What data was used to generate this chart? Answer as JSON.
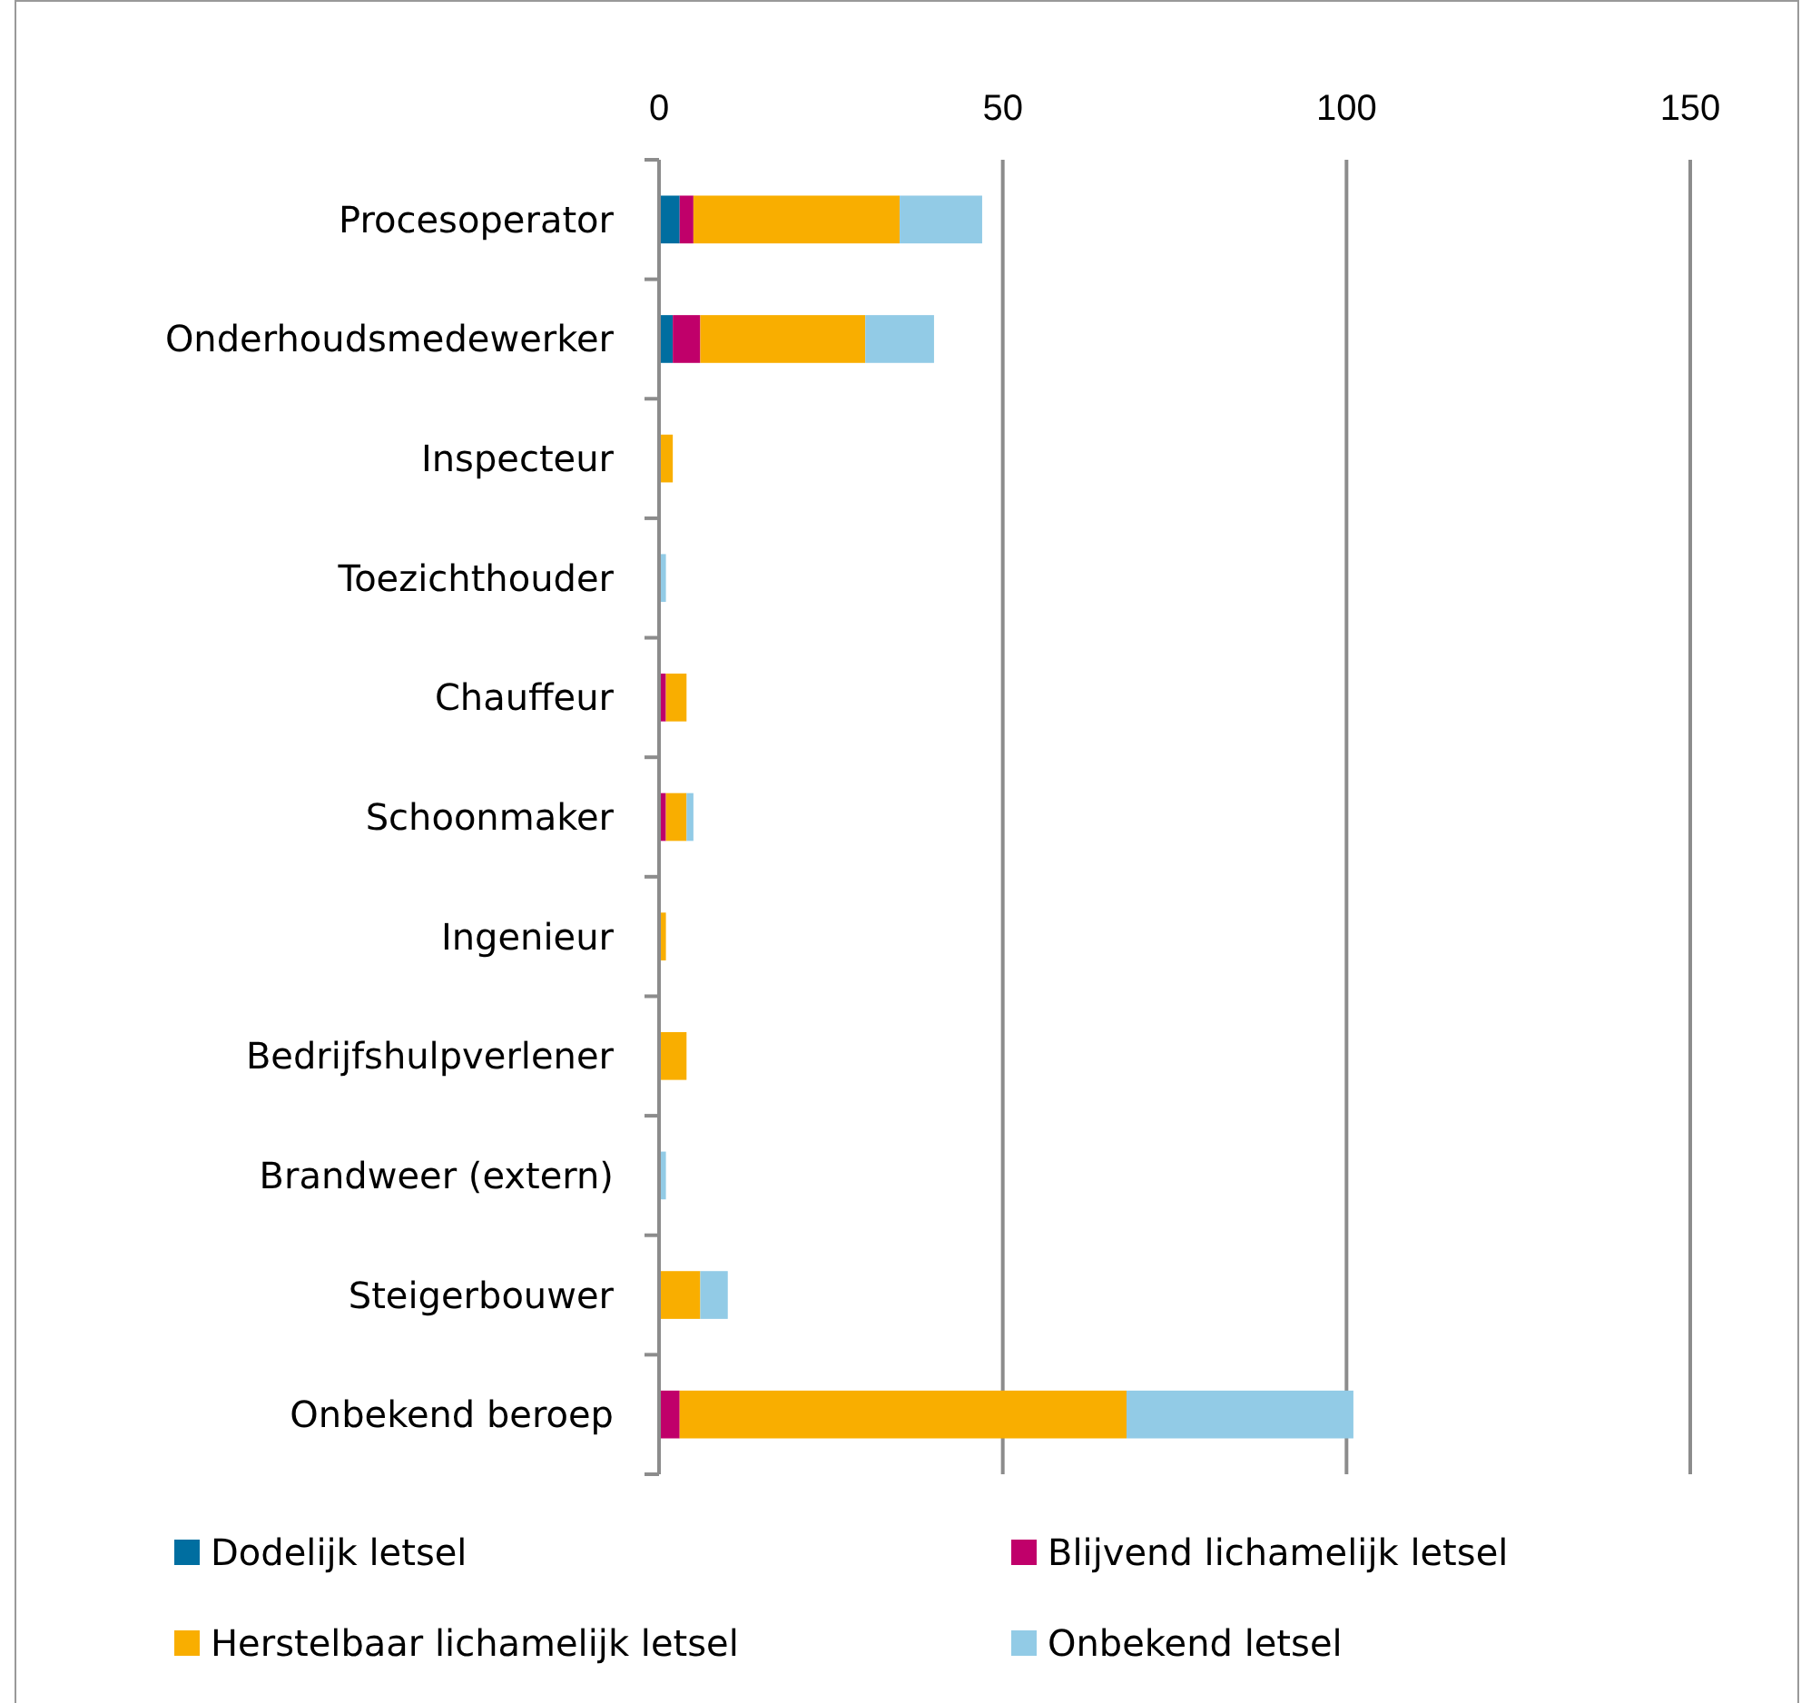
{
  "chart_data": {
    "type": "bar",
    "orientation": "horizontal",
    "stacked": true,
    "categories": [
      "Procesoperator",
      "Onderhoudsmedewerker",
      "Inspecteur",
      "Toezichthouder",
      "Chauffeur",
      "Schoonmaker",
      "Ingenieur",
      "Bedrijfshulpverlener",
      "Brandweer (extern)",
      "Steigerbouwer",
      "Onbekend beroep"
    ],
    "series": [
      {
        "name": "Dodelijk letsel",
        "color": "#006ea0",
        "values": [
          3,
          2,
          0,
          0,
          0,
          0,
          0,
          0,
          0,
          0,
          0
        ]
      },
      {
        "name": "Blijvend lichamelijk letsel",
        "color": "#c0006a",
        "values": [
          2,
          4,
          0,
          0,
          1,
          1,
          0,
          0,
          0,
          0,
          3
        ]
      },
      {
        "name": "Herstelbaar lichamelijk letsel",
        "color": "#f9ae00",
        "values": [
          30,
          24,
          2,
          0,
          3,
          3,
          1,
          4,
          0,
          6,
          65
        ]
      },
      {
        "name": "Onbekend letsel",
        "color": "#92cbe6",
        "values": [
          12,
          10,
          0,
          1,
          0,
          1,
          0,
          0,
          1,
          4,
          33
        ]
      }
    ],
    "xlim": [
      0,
      150
    ],
    "xticks": [
      0,
      50,
      100,
      150
    ],
    "grid": "x",
    "legend": "bottom"
  }
}
